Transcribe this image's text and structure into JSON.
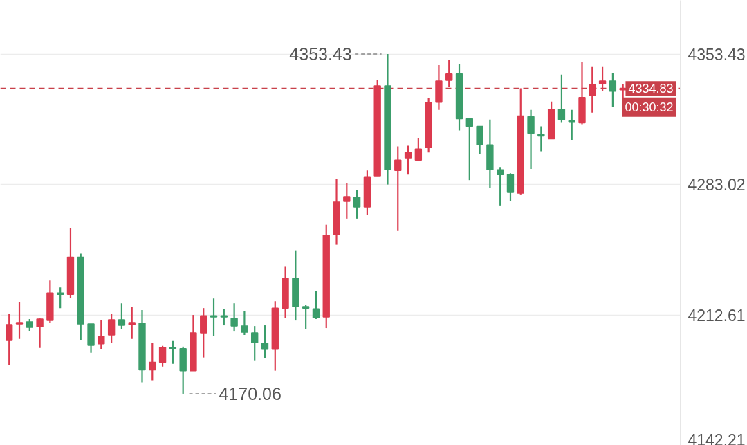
{
  "chart_data": {
    "type": "candlestick",
    "categories": [
      null,
      null,
      null,
      null,
      null,
      null,
      null,
      null,
      null,
      null,
      null,
      null,
      null,
      null,
      null,
      null,
      null,
      null,
      null,
      null,
      null,
      null,
      null,
      null,
      null,
      null,
      null,
      null,
      null,
      null,
      null,
      null,
      null,
      null,
      null,
      null,
      null,
      null,
      null,
      null,
      null,
      null,
      null,
      null,
      null,
      null,
      null,
      null,
      null,
      null,
      null,
      null,
      null,
      null,
      null,
      null,
      null,
      null,
      null,
      null,
      null
    ],
    "ohlc": [
      [
        4198.8,
        4213.3,
        4185.5,
        4207.4
      ],
      [
        4207.8,
        4219.7,
        4199.6,
        4208.5
      ],
      [
        4208.9,
        4210.4,
        4204.0,
        4205.9
      ],
      [
        4206.3,
        4210.7,
        4194.8,
        4210.4
      ],
      [
        4209.6,
        4231.2,
        4208.1,
        4224.5
      ],
      [
        4224.5,
        4227.5,
        4216.3,
        4223.7
      ],
      [
        4223.7,
        4259.4,
        4221.9,
        4243.8
      ],
      [
        4243.8,
        4245.7,
        4198.8,
        4207.8
      ],
      [
        4207.8,
        4207.8,
        4192.2,
        4196.2
      ],
      [
        4197.0,
        4209.6,
        4194.0,
        4201.1
      ],
      [
        4201.8,
        4213.0,
        4197.7,
        4210.0
      ],
      [
        4210.0,
        4218.9,
        4204.8,
        4207.0
      ],
      [
        4207.4,
        4216.7,
        4199.6,
        4208.5
      ],
      [
        4208.1,
        4215.2,
        4176.2,
        4182.9
      ],
      [
        4182.9,
        4197.7,
        4177.3,
        4187.0
      ],
      [
        4187.0,
        4195.9,
        4184.7,
        4195.1
      ],
      [
        4195.1,
        4198.5,
        4186.2,
        4194.4
      ],
      [
        4194.4,
        4195.5,
        4170.06,
        4182.5
      ],
      [
        4182.5,
        4212.6,
        4182.5,
        4202.9
      ],
      [
        4202.9,
        4216.3,
        4189.6,
        4212.2
      ],
      [
        4212.2,
        4221.5,
        4201.4,
        4211.5
      ],
      [
        4212.2,
        4215.9,
        4207.0,
        4211.5
      ],
      [
        4210.7,
        4218.9,
        4204.0,
        4206.6
      ],
      [
        4206.6,
        4214.5,
        4201.8,
        4203.3
      ],
      [
        4202.9,
        4206.6,
        4188.1,
        4197.7
      ],
      [
        4197.4,
        4207.0,
        4189.2,
        4194.0
      ],
      [
        4194.0,
        4220.0,
        4182.5,
        4216.3
      ],
      [
        4216.3,
        4238.6,
        4211.1,
        4232.3
      ],
      [
        4232.3,
        4247.5,
        4209.6,
        4217.1
      ],
      [
        4217.1,
        4218.2,
        4204.8,
        4216.3
      ],
      [
        4215.9,
        4225.6,
        4210.4,
        4211.1
      ],
      [
        4211.5,
        4261.3,
        4205.5,
        4255.7
      ],
      [
        4256.1,
        4286.2,
        4250.5,
        4273.5
      ],
      [
        4273.9,
        4283.9,
        4264.6,
        4276.5
      ],
      [
        4276.1,
        4279.9,
        4264.6,
        4270.9
      ],
      [
        4270.9,
        4290.6,
        4266.5,
        4286.9
      ],
      [
        4287.3,
        4339.3,
        4287.3,
        4336.3
      ],
      [
        4336.3,
        4353.43,
        4283.0,
        4291.0
      ],
      [
        4290.6,
        4303.6,
        4257.9,
        4296.2
      ],
      [
        4297.0,
        4304.0,
        4288.4,
        4300.3
      ],
      [
        4296.2,
        4308.1,
        4296.2,
        4302.2
      ],
      [
        4302.9,
        4329.7,
        4300.3,
        4327.4
      ],
      [
        4327.4,
        4347.5,
        4323.3,
        4338.9
      ],
      [
        4339.3,
        4350.5,
        4335.6,
        4342.7
      ],
      [
        4342.7,
        4348.2,
        4312.2,
        4318.5
      ],
      [
        4318.5,
        4318.5,
        4285.4,
        4314.4
      ],
      [
        4314.4,
        4314.4,
        4299.5,
        4304.4
      ],
      [
        4304.4,
        4318.1,
        4281.0,
        4291.0
      ],
      [
        4291.0,
        4292.1,
        4271.7,
        4288.4
      ],
      [
        4288.4,
        4289.1,
        4273.9,
        4278.7
      ],
      [
        4278.4,
        4335.0,
        4277.3,
        4320.0
      ],
      [
        4319.6,
        4323.3,
        4291.4,
        4310.7
      ],
      [
        4310.0,
        4314.4,
        4301.0,
        4309.2
      ],
      [
        4307.7,
        4327.8,
        4307.7,
        4323.7
      ],
      [
        4323.7,
        4342.3,
        4316.3,
        4318.1
      ],
      [
        4317.4,
        4323.3,
        4307.0,
        4316.6
      ],
      [
        4316.3,
        4349.0,
        4315.5,
        4330.0
      ],
      [
        4331.1,
        4346.4,
        4321.8,
        4337.1
      ],
      [
        4337.5,
        4346.4,
        4333.4,
        4338.9
      ],
      [
        4338.9,
        4343.0,
        4324.8,
        4333.4
      ],
      [
        4334.1,
        4337.1,
        4329.3,
        4334.83
      ]
    ],
    "colors": [
      "#dc3a4e",
      "#dc3a4e",
      "#3a9d6a",
      "#dc3a4e",
      "#dc3a4e",
      "#3a9d6a",
      "#dc3a4e",
      "#3a9d6a",
      "#3a9d6a",
      "#dc3a4e",
      "#dc3a4e",
      "#3a9d6a",
      "#dc3a4e",
      "#3a9d6a",
      "#dc3a4e",
      "#dc3a4e",
      "#3a9d6a",
      "#3a9d6a",
      "#dc3a4e",
      "#dc3a4e",
      "#3a9d6a",
      "#3a9d6a",
      "#3a9d6a",
      "#3a9d6a",
      "#3a9d6a",
      "#3a9d6a",
      "#dc3a4e",
      "#dc3a4e",
      "#3a9d6a",
      "#3a9d6a",
      "#3a9d6a",
      "#dc3a4e",
      "#dc3a4e",
      "#dc3a4e",
      "#3a9d6a",
      "#dc3a4e",
      "#dc3a4e",
      "#3a9d6a",
      "#dc3a4e",
      "#dc3a4e",
      "#dc3a4e",
      "#dc3a4e",
      "#dc3a4e",
      "#dc3a4e",
      "#3a9d6a",
      "#3a9d6a",
      "#3a9d6a",
      "#3a9d6a",
      "#3a9d6a",
      "#3a9d6a",
      "#dc3a4e",
      "#3a9d6a",
      "#3a9d6a",
      "#dc3a4e",
      "#3a9d6a",
      "#3a9d6a",
      "#dc3a4e",
      "#dc3a4e",
      "#dc3a4e",
      "#3a9d6a",
      "#dc3a4e"
    ],
    "ylim": [
      4142.21,
      4382.4
    ],
    "yticks": [
      4142.21,
      4212.61,
      4283.02,
      4353.43
    ],
    "grid": "y",
    "tick_labels": "y",
    "ref_lines": [
      {
        "axis": "y",
        "value": 4334.83,
        "label": "4334.83",
        "color": "#c8404a",
        "line_style": "dashed"
      }
    ],
    "annotations": [
      "4353.43",
      "4170.06",
      "00:30:32"
    ]
  }
}
